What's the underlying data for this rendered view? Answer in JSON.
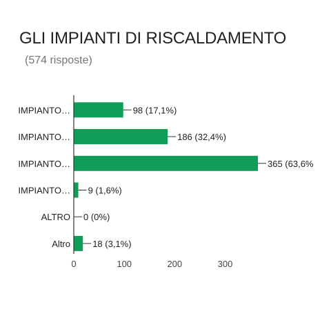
{
  "header": {
    "title": "GLI IMPIANTI DI RISCALDAMENTO",
    "subtitle": "(574 risposte)"
  },
  "chart_data": {
    "type": "bar",
    "orientation": "horizontal",
    "title": "GLI IMPIANTI DI RISCALDAMENTO",
    "subtitle": "(574 risposte)",
    "categories": [
      "IMPIANTO…",
      "IMPIANTO…",
      "IMPIANTO…",
      "IMPIANTO…",
      "ALTRO",
      "Altro"
    ],
    "values": [
      98,
      186,
      365,
      9,
      0,
      18
    ],
    "data_labels": [
      "98 (17,1%)",
      "186 (32,4%)",
      "365 (63,6%",
      "9 (1,6%)",
      "0 (0%)",
      "18 (3,1%)"
    ],
    "xticks": [
      0,
      100,
      200,
      300
    ],
    "xlim": [
      0,
      365
    ],
    "grid": false,
    "bar_color": "#0f9d58",
    "axis_color": "#333333",
    "label_color": "#212121",
    "tick_color": "#444444"
  }
}
